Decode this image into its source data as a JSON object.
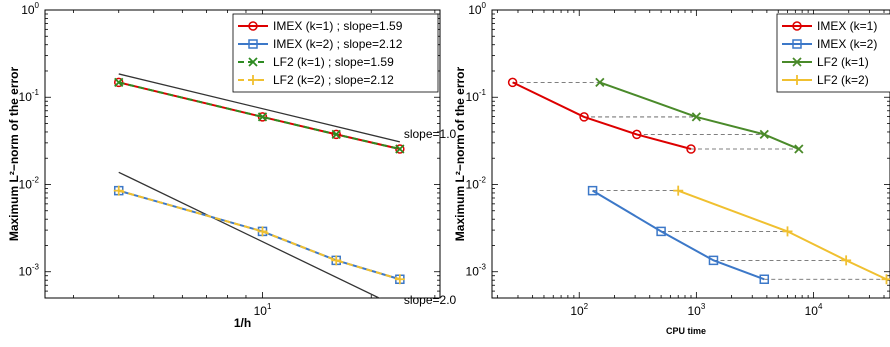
{
  "chart_data": [
    {
      "type": "line",
      "xlabel": "1/h",
      "ylabel": "Maximum L²−norm of the error",
      "xscale": "log",
      "yscale": "log",
      "xlim": [
        2.5,
        31
      ],
      "ylim": [
        0.0005,
        1
      ],
      "grid": false,
      "legend_position": "top-right",
      "x_ticks": [
        {
          "base": "10",
          "exp": "1",
          "value": 10
        }
      ],
      "y_ticks": [
        {
          "base": "10",
          "exp": "-3",
          "value": 0.001
        },
        {
          "base": "10",
          "exp": "-2",
          "value": 0.01
        },
        {
          "base": "10",
          "exp": "-1",
          "value": 0.1
        },
        {
          "base": "10",
          "exp": "0",
          "value": 1
        }
      ],
      "series": [
        {
          "name": "IMEX (k=1) ; slope=1.59",
          "color": "#dd0000",
          "marker": "circle",
          "dashed": false,
          "x": [
            4,
            10,
            16,
            24
          ],
          "y": [
            0.148,
            0.0595,
            0.0375,
            0.0255
          ]
        },
        {
          "name": "IMEX (k=2) ; slope=2.12",
          "color": "#3c78c8",
          "marker": "square",
          "dashed": false,
          "x": [
            4,
            10,
            16,
            24
          ],
          "y": [
            0.0085,
            0.0029,
            0.00135,
            0.00082
          ]
        },
        {
          "name": "LF2 (k=1) ; slope=1.59",
          "color": "#2e8b22",
          "marker": "x",
          "dashed": true,
          "x": [
            4,
            10,
            16,
            24
          ],
          "y": [
            0.148,
            0.0595,
            0.0375,
            0.0255
          ]
        },
        {
          "name": "LF2 (k=2) ; slope=2.12",
          "color": "#f0c030",
          "marker": "plus",
          "dashed": true,
          "x": [
            4,
            10,
            16,
            24
          ],
          "y": [
            0.0085,
            0.0029,
            0.00135,
            0.00082
          ]
        }
      ],
      "reference_lines": [
        {
          "label": "slope=1.0",
          "x": [
            4,
            24
          ],
          "y": [
            0.185,
            0.0308
          ]
        },
        {
          "label": "slope=2.0",
          "x": [
            4,
            24
          ],
          "y": [
            0.0138,
            0.000384
          ]
        }
      ]
    },
    {
      "type": "line",
      "xlabel": "CPU time",
      "ylabel": "Maximum L²−norm of the error",
      "xscale": "log",
      "yscale": "log",
      "xlim": [
        18,
        45000
      ],
      "ylim": [
        0.0005,
        1
      ],
      "grid": false,
      "legend_position": "top-right",
      "x_ticks": [
        {
          "base": "10",
          "exp": "2",
          "value": 100
        },
        {
          "base": "10",
          "exp": "3",
          "value": 1000
        },
        {
          "base": "10",
          "exp": "4",
          "value": 10000
        }
      ],
      "y_ticks": [
        {
          "base": "10",
          "exp": "-3",
          "value": 0.001
        },
        {
          "base": "10",
          "exp": "-2",
          "value": 0.01
        },
        {
          "base": "10",
          "exp": "-1",
          "value": 0.1
        },
        {
          "base": "10",
          "exp": "0",
          "value": 1
        }
      ],
      "series": [
        {
          "name": "IMEX (k=1)",
          "color": "#dd0000",
          "marker": "circle",
          "x": [
            27,
            110,
            310,
            900
          ],
          "y": [
            0.148,
            0.0595,
            0.0375,
            0.0255
          ]
        },
        {
          "name": "IMEX (k=2)",
          "color": "#3c78c8",
          "marker": "square",
          "x": [
            130,
            500,
            1400,
            3800
          ],
          "y": [
            0.0085,
            0.0029,
            0.00135,
            0.00082
          ]
        },
        {
          "name": "LF2 (k=1)",
          "color": "#4a8a2a",
          "marker": "x",
          "x": [
            150,
            1000,
            3800,
            7500
          ],
          "y": [
            0.148,
            0.0595,
            0.0375,
            0.0255
          ]
        },
        {
          "name": "LF2 (k=2)",
          "color": "#f0c030",
          "marker": "plus",
          "x": [
            700,
            6000,
            19000,
            42000
          ],
          "y": [
            0.0085,
            0.0029,
            0.00135,
            0.00082
          ]
        }
      ],
      "connector_lines": "dashed gray lines join IMEX and LF2 points of equal error"
    }
  ]
}
